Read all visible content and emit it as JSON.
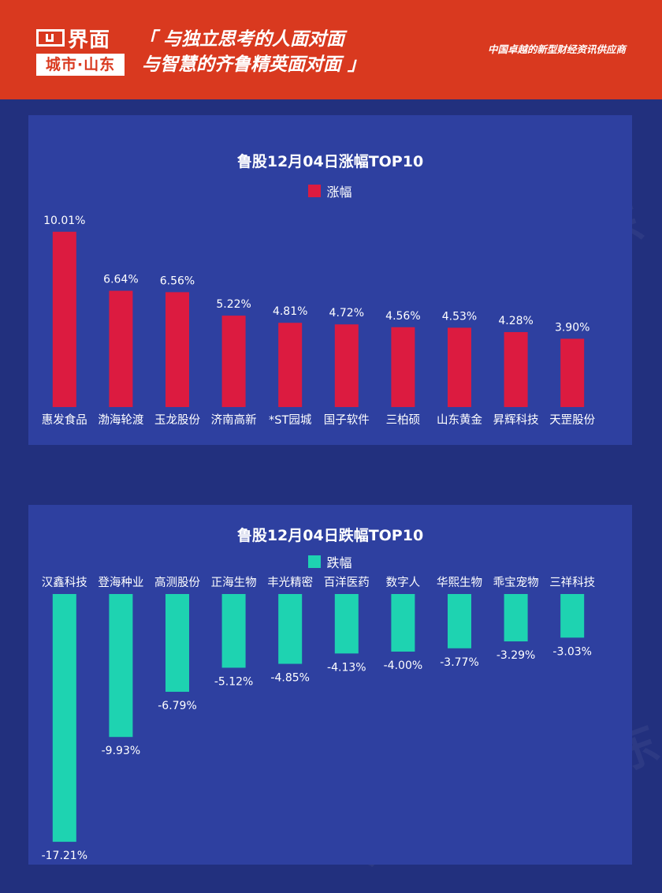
{
  "header": {
    "logo_name": "界面",
    "logo_sub": "城市·山东",
    "slogan_line1": "「 与独立思考的人面对面",
    "slogan_line2": "与智慧的齐鲁精英面对面 」",
    "tagline": "中国卓越的新型财经资讯供应商"
  },
  "watermark_text": "界面 城市·山东",
  "colors": {
    "rise": "#dc1b40",
    "fall": "#1ed3b1",
    "panel": "#2e40a0",
    "background": "#22307e",
    "header": "#d9391f"
  },
  "chart_data": [
    {
      "type": "bar",
      "title": "鲁股12月04日涨幅TOP10",
      "series": [
        {
          "name": "涨幅",
          "values": [
            10.01,
            6.64,
            6.56,
            5.22,
            4.81,
            4.72,
            4.56,
            4.53,
            4.28,
            3.9
          ]
        }
      ],
      "categories": [
        "惠发食品",
        "渤海轮渡",
        "玉龙股份",
        "济南高新",
        "*ST园城",
        "国子软件",
        "三柏硕",
        "山东黄金",
        "昇辉科技",
        "天罡股份"
      ],
      "value_labels": [
        "10.01%",
        "6.64%",
        "6.56%",
        "5.22%",
        "4.81%",
        "4.72%",
        "4.56%",
        "4.53%",
        "4.28%",
        "3.90%"
      ],
      "legend": "top-center",
      "grid": false
    },
    {
      "type": "bar",
      "title": "鲁股12月04日跌幅TOP10",
      "series": [
        {
          "name": "跌幅",
          "values": [
            -17.21,
            -9.93,
            -6.79,
            -5.12,
            -4.85,
            -4.13,
            -4.0,
            -3.77,
            -3.29,
            -3.03
          ]
        }
      ],
      "categories": [
        "汉鑫科技",
        "登海种业",
        "高测股份",
        "正海生物",
        "丰光精密",
        "百洋医药",
        "数字人",
        "华熙生物",
        "乖宝宠物",
        "三祥科技"
      ],
      "value_labels": [
        "-17.21%",
        "-9.93%",
        "-6.79%",
        "-5.12%",
        "-4.85%",
        "-4.13%",
        "-4.00%",
        "-3.77%",
        "-3.29%",
        "-3.03%"
      ],
      "legend": "top-center",
      "grid": false
    }
  ]
}
